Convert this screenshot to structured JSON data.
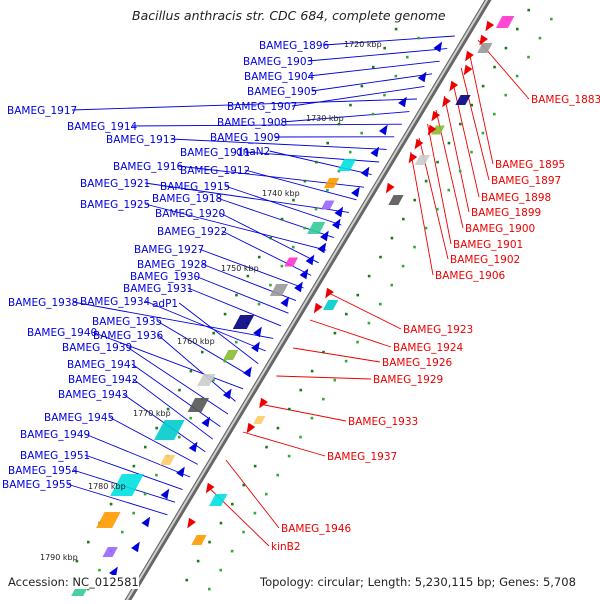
{
  "title": "Bacillus anthracis str. CDC 684, complete genome",
  "footer": {
    "accession": "Accession: NC_012581",
    "topology": "Topology: circular; Length: 5,230,115 bp; Genes: 5,708"
  },
  "colors": {
    "forward": "#0000dd",
    "reverse": "#ee0000",
    "backbone": "#888888",
    "tick": "#228822"
  },
  "kbp_labels": [
    "1720 kbp",
    "1730 kbp",
    "1740 kbp",
    "1750 kbp",
    "1760 kbp",
    "1770 kbp",
    "1780 kbp",
    "1790 kbp"
  ],
  "forward_genes": [
    "BAMEG_1896",
    "BAMEG_1903",
    "BAMEG_1904",
    "BAMEG_1905",
    "BAMEG_1907",
    "BAMEG_1917",
    "BAMEG_1908",
    "BAMEG_1914",
    "BAMEG_1909",
    "BAMEG_1913",
    "BAMEG_1911",
    "dnaN2",
    "BAMEG_1916",
    "BAMEG_1912",
    "BAMEG_1921",
    "BAMEG_1915",
    "BAMEG_1918",
    "BAMEG_1925",
    "BAMEG_1920",
    "BAMEG_1922",
    "BAMEG_1927",
    "BAMEG_1928",
    "BAMEG_1930",
    "BAMEG_1931",
    "BAMEG_1938",
    "BAMEG_1934",
    "adP1",
    "BAMEG_1935",
    "BAMEG_1940",
    "BAMEG_1936",
    "BAMEG_1939",
    "BAMEG_1941",
    "BAMEG_1942",
    "BAMEG_1943",
    "BAMEG_1945",
    "BAMEG_1949",
    "BAMEG_1951",
    "BAMEG_1954",
    "BAMEG_1955"
  ],
  "reverse_genes": [
    "BAMEG_1883",
    "BAMEG_1895",
    "BAMEG_1897",
    "BAMEG_1898",
    "BAMEG_1899",
    "BAMEG_1900",
    "BAMEG_1901",
    "BAMEG_1902",
    "BAMEG_1906",
    "BAMEG_1923",
    "BAMEG_1924",
    "BAMEG_1926",
    "BAMEG_1929",
    "BAMEG_1933",
    "BAMEG_1937",
    "BAMEG_1946",
    "kinB2"
  ]
}
